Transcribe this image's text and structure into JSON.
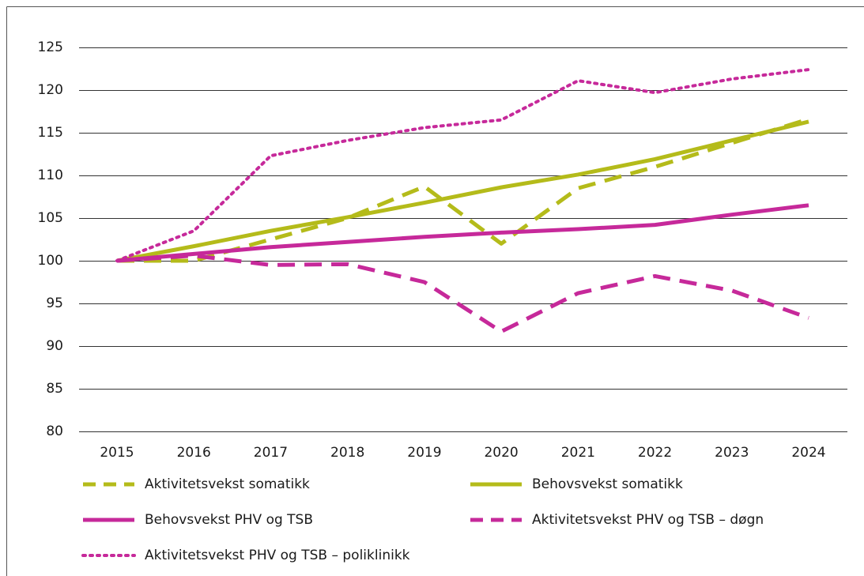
{
  "chart_data": {
    "type": "line",
    "categories": [
      "2015",
      "2016",
      "2017",
      "2018",
      "2019",
      "2020",
      "2021",
      "2022",
      "2023",
      "2024"
    ],
    "series": [
      {
        "name": "Aktivitetsvekst somatikk",
        "color": "#b4bb1a",
        "dash": "dashed",
        "values": [
          100,
          100,
          102.5,
          105,
          108.7,
          102,
          108.5,
          111,
          113.8,
          116.6
        ]
      },
      {
        "name": "Behovsvekst somatikk",
        "color": "#b4bb1a",
        "dash": "solid",
        "values": [
          100,
          101.7,
          103.5,
          105.1,
          106.8,
          108.6,
          110.1,
          111.9,
          114.1,
          116.3
        ]
      },
      {
        "name": "Behovsvekst PHV og TSB",
        "color": "#c6299a",
        "dash": "solid",
        "values": [
          100,
          100.8,
          101.6,
          102.2,
          102.8,
          103.3,
          103.7,
          104.2,
          105.4,
          106.5
        ]
      },
      {
        "name": "Aktivitetsvekst PHV og TSB – døgn",
        "color": "#c6299a",
        "dash": "dashed",
        "values": [
          100,
          100.6,
          99.5,
          99.6,
          97.5,
          91.7,
          96.2,
          98.2,
          96.5,
          93.3
        ]
      },
      {
        "name": "Aktivitetsvekst PHV og TSB – poliklinikk",
        "color": "#c6299a",
        "dash": "dotted",
        "values": [
          100,
          103.5,
          112.3,
          114.1,
          115.6,
          116.5,
          121.1,
          119.7,
          121.3,
          122.4
        ]
      }
    ],
    "ylim": [
      80,
      125
    ],
    "yticks": [
      80,
      85,
      90,
      95,
      100,
      105,
      110,
      115,
      120,
      125
    ],
    "grid": true
  }
}
